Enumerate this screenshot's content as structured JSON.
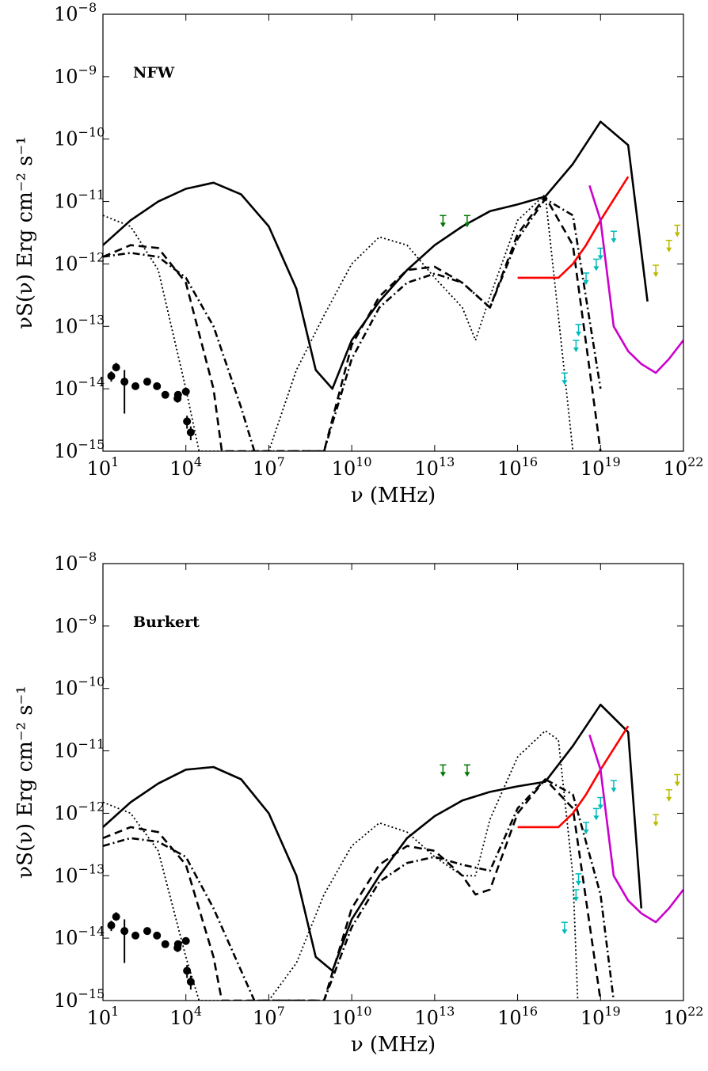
{
  "chart_data": [
    {
      "type": "line",
      "panel_label": "NFW",
      "xlabel": "ν (MHz)",
      "ylabel": "νS(ν) Erg cm⁻² s⁻¹",
      "x_scale": "log",
      "y_scale": "log",
      "xlim": [
        10,
        1e+22
      ],
      "ylim": [
        1e-15,
        1e-08
      ],
      "x_ticks": [
        {
          "base": "10",
          "exp": "1"
        },
        {
          "base": "10",
          "exp": "4"
        },
        {
          "base": "10",
          "exp": "7"
        },
        {
          "base": "10",
          "exp": "10"
        },
        {
          "base": "10",
          "exp": "13"
        },
        {
          "base": "10",
          "exp": "16"
        },
        {
          "base": "10",
          "exp": "19"
        },
        {
          "base": "10",
          "exp": "22"
        }
      ],
      "y_ticks": [
        {
          "base": "10",
          "exp": "−15"
        },
        {
          "base": "10",
          "exp": "−14"
        },
        {
          "base": "10",
          "exp": "−13"
        },
        {
          "base": "10",
          "exp": "−12"
        },
        {
          "base": "10",
          "exp": "−11"
        },
        {
          "base": "10",
          "exp": "−10"
        },
        {
          "base": "10",
          "exp": "−9"
        },
        {
          "base": "10",
          "exp": "−8"
        }
      ],
      "series": [
        {
          "style": "solid",
          "color": "#000000",
          "x": [
            10,
            100,
            1000,
            10000,
            100000.0,
            1000000.0,
            10000000.0,
            100000000.0,
            500000000.0,
            2000000000.0,
            10000000000.0,
            100000000000.0,
            1000000000000.0,
            10000000000000.0,
            100000000000000.0,
            1000000000000000.0,
            1e+16,
            1e+17,
            1e+18,
            1e+19,
            1e+20,
            5e+20
          ],
          "y": [
            2e-12,
            5e-12,
            1e-11,
            1.6e-11,
            2e-11,
            1.3e-11,
            4e-12,
            4e-13,
            2e-14,
            1e-14,
            6e-14,
            2.5e-13,
            8e-13,
            2e-12,
            4e-12,
            7e-12,
            9e-12,
            1.2e-11,
            4e-11,
            1.9e-10,
            8e-11,
            2.5e-13
          ]
        },
        {
          "style": "dashed",
          "color": "#000000",
          "x": [
            10,
            100,
            1000,
            10000.0,
            100000.0,
            200000.0,
            1000000000.0,
            10000000000.0,
            100000000000.0,
            1000000000000.0,
            10000000000000.0,
            100000000000000.0,
            1000000000000000.0,
            1e+16,
            1e+17,
            1e+18,
            1e+19
          ],
          "y": [
            1.3e-12,
            2e-12,
            1.8e-12,
            5e-13,
            1e-14,
            1e-15,
            1e-15,
            5e-14,
            3e-13,
            8e-13,
            9e-13,
            5e-13,
            2e-13,
            3e-12,
            1.2e-11,
            2e-12,
            1e-15
          ]
        },
        {
          "style": "dashdot",
          "color": "#000000",
          "x": [
            10,
            100,
            1000,
            10000.0,
            100000.0,
            1000000.0,
            3000000.0,
            1000000000.0,
            10000000000.0,
            100000000000.0,
            1000000000000.0,
            10000000000000.0,
            100000000000000.0,
            1000000000000000.0,
            1e+16,
            1e+17,
            1e+18,
            1e+19
          ],
          "y": [
            1.3e-12,
            1.5e-12,
            1.3e-12,
            6e-13,
            1e-13,
            5e-15,
            1e-15,
            1e-15,
            3e-14,
            2e-13,
            5e-13,
            7e-13,
            5e-13,
            2e-13,
            2.5e-12,
            1.1e-11,
            6e-12,
            1e-14
          ]
        },
        {
          "style": "dotted",
          "color": "#000000",
          "x": [
            10,
            100,
            1000,
            10000.0,
            30000.0,
            1000000.0,
            10000000.0,
            100000000.0,
            1000000000.0,
            10000000000.0,
            100000000000.0,
            1000000000000.0,
            10000000000000.0,
            100000000000000.0,
            300000000000000.0,
            1000000000000000.0,
            1e+16,
            1e+17,
            1e+18
          ],
          "y": [
            6e-12,
            4e-12,
            8e-13,
            1e-14,
            1e-15,
            1e-15,
            1e-15,
            2e-14,
            1.5e-13,
            1e-12,
            2.7e-12,
            2e-12,
            6e-13,
            2e-13,
            6e-14,
            3e-13,
            5e-12,
            1.3e-11,
            1e-15
          ]
        },
        {
          "style": "solid",
          "color": "#ff0000",
          "x": [
            1e+16,
            1e+17,
            3e+17,
            1e+18,
            3e+18,
            1e+19,
            1e+20
          ],
          "y": [
            6e-13,
            6e-13,
            6e-13,
            1e-12,
            2e-12,
            5e-12,
            2.5e-11
          ]
        },
        {
          "style": "solid",
          "color": "#cc00cc",
          "x": [
            4e+18,
            1e+19,
            3e+19,
            1e+20,
            3e+20,
            1e+21,
            3e+21,
            1e+22
          ],
          "y": [
            1.8e-11,
            5e-12,
            1e-13,
            4e-14,
            2.5e-14,
            1.8e-14,
            3e-14,
            6e-14
          ]
        }
      ],
      "data_points": {
        "color": "#000000",
        "x": [
          20,
          30,
          60,
          150,
          400,
          900,
          1800,
          5000,
          5200,
          10000,
          11000,
          15000
        ],
        "y": [
          1.6e-14,
          2.2e-14,
          1.3e-14,
          1.1e-14,
          1.3e-14,
          1.1e-14,
          8e-15,
          7e-15,
          8e-15,
          9e-15,
          3e-15,
          2e-15
        ],
        "yerr_low": [
          1.3e-14,
          1.9e-14,
          4e-15,
          1e-14,
          1.2e-14,
          1e-14,
          7e-15,
          6e-15,
          7e-15,
          8e-15,
          2.3e-15,
          1.5e-15
        ],
        "yerr_high": [
          1.9e-14,
          2.6e-14,
          2e-14,
          1.2e-14,
          1.4e-14,
          1.2e-14,
          9e-15,
          8e-15,
          9e-15,
          1e-14,
          3.7e-15,
          2.5e-15
        ]
      },
      "upper_limits": [
        {
          "color": "#007700",
          "x": [
            20000000000000.0,
            150000000000000.0
          ],
          "y": [
            5e-12,
            5e-12
          ]
        },
        {
          "color": "#00bbbb",
          "x": [
            5e+17,
            1.3e+18,
            1.6e+18,
            3e+18,
            7e+18,
            1e+19,
            3e+19
          ],
          "y": [
            1.5e-14,
            5e-14,
            9e-14,
            6e-13,
            1e-12,
            1.5e-12,
            2.8e-12
          ]
        },
        {
          "color": "#bbbb00",
          "x": [
            1e+21,
            3e+21,
            6e+21
          ],
          "y": [
            8e-13,
            2e-12,
            3.5e-12
          ]
        }
      ]
    },
    {
      "type": "line",
      "panel_label": "Burkert",
      "xlabel": "ν (MHz)",
      "ylabel": "νS(ν) Erg cm⁻² s⁻¹",
      "x_scale": "log",
      "y_scale": "log",
      "xlim": [
        10,
        1e+22
      ],
      "ylim": [
        1e-15,
        1e-08
      ],
      "x_ticks": [
        {
          "base": "10",
          "exp": "1"
        },
        {
          "base": "10",
          "exp": "4"
        },
        {
          "base": "10",
          "exp": "7"
        },
        {
          "base": "10",
          "exp": "10"
        },
        {
          "base": "10",
          "exp": "13"
        },
        {
          "base": "10",
          "exp": "16"
        },
        {
          "base": "10",
          "exp": "19"
        },
        {
          "base": "10",
          "exp": "22"
        }
      ],
      "y_ticks": [
        {
          "base": "10",
          "exp": "−15"
        },
        {
          "base": "10",
          "exp": "−14"
        },
        {
          "base": "10",
          "exp": "−13"
        },
        {
          "base": "10",
          "exp": "−12"
        },
        {
          "base": "10",
          "exp": "−11"
        },
        {
          "base": "10",
          "exp": "−10"
        },
        {
          "base": "10",
          "exp": "−9"
        },
        {
          "base": "10",
          "exp": "−8"
        }
      ],
      "series": [
        {
          "style": "solid",
          "color": "#000000",
          "x": [
            10,
            100,
            1000,
            10000,
            100000.0,
            1000000.0,
            10000000.0,
            100000000.0,
            500000000.0,
            2000000000.0,
            10000000000.0,
            100000000000.0,
            1000000000000.0,
            10000000000000.0,
            100000000000000.0,
            1000000000000000.0,
            1e+16,
            1e+17,
            1e+18,
            1e+19,
            1e+20,
            3e+20
          ],
          "y": [
            6e-13,
            1.5e-12,
            3e-12,
            5e-12,
            5.5e-12,
            3.5e-12,
            1e-12,
            1e-13,
            5e-15,
            3e-15,
            2e-14,
            1e-13,
            4e-13,
            9e-13,
            1.6e-12,
            2.2e-12,
            2.7e-12,
            3.2e-12,
            1.2e-11,
            5.5e-11,
            2e-11,
            3e-14
          ]
        },
        {
          "style": "dashed",
          "color": "#000000",
          "x": [
            10,
            100,
            1000,
            10000.0,
            100000.0,
            200000.0,
            1000000000.0,
            10000000000.0,
            100000000000.0,
            1000000000000.0,
            10000000000000.0,
            100000000000000.0,
            300000000000000.0,
            1000000000000000.0,
            1e+16,
            1e+17,
            1e+18,
            1e+19
          ],
          "y": [
            4e-13,
            6e-13,
            5e-13,
            1.5e-13,
            5e-15,
            1e-15,
            1e-15,
            3e-14,
            1.5e-13,
            3e-13,
            2.5e-13,
            1e-13,
            5e-14,
            6e-14,
            1e-12,
            3.5e-12,
            1.2e-12,
            1e-15
          ]
        },
        {
          "style": "dashdot",
          "color": "#000000",
          "x": [
            10,
            100,
            1000,
            10000.0,
            100000.0,
            1000000.0,
            3000000.0,
            1000000000.0,
            10000000000.0,
            100000000000.0,
            1000000000000.0,
            10000000000000.0,
            100000000000000.0,
            1000000000000000.0,
            1e+16,
            1e+17,
            1e+18,
            1e+19,
            3e+19
          ],
          "y": [
            3e-13,
            4e-13,
            3.5e-13,
            2e-13,
            3e-14,
            3e-15,
            1e-15,
            1e-15,
            1.5e-14,
            8e-14,
            1.6e-13,
            2e-13,
            1.5e-13,
            1.2e-13,
            1.2e-12,
            3.5e-12,
            2e-12,
            5e-14,
            1e-15
          ]
        },
        {
          "style": "dotted",
          "color": "#000000",
          "x": [
            10,
            100,
            1000,
            10000.0,
            30000.0,
            1000000.0,
            10000000.0,
            100000000.0,
            1000000000.0,
            10000000000.0,
            100000000000.0,
            1000000000000.0,
            10000000000000.0,
            100000000000000.0,
            300000000000000.0,
            1000000000000000.0,
            1e+16,
            1e+17,
            3e+17,
            1e+18,
            1.5e+18
          ],
          "y": [
            1.5e-12,
            1e-12,
            2.5e-13,
            5e-15,
            1e-15,
            1e-15,
            1e-15,
            4e-15,
            5e-14,
            3e-13,
            7e-13,
            5e-13,
            2e-13,
            1e-13,
            1e-13,
            8e-13,
            8e-12,
            2.1e-11,
            1.5e-11,
            1e-13,
            1e-15
          ]
        },
        {
          "style": "solid",
          "color": "#ff0000",
          "x": [
            1e+16,
            1e+17,
            3e+17,
            1e+18,
            3e+18,
            1e+19,
            1e+20
          ],
          "y": [
            6e-13,
            6e-13,
            6e-13,
            1e-12,
            2e-12,
            5e-12,
            2.5e-11
          ]
        },
        {
          "style": "solid",
          "color": "#cc00cc",
          "x": [
            4e+18,
            1e+19,
            3e+19,
            1e+20,
            3e+20,
            1e+21,
            3e+21,
            1e+22
          ],
          "y": [
            1.8e-11,
            5e-12,
            1e-13,
            4e-14,
            2.5e-14,
            1.8e-14,
            3e-14,
            6e-14
          ]
        }
      ],
      "data_points": {
        "color": "#000000",
        "x": [
          20,
          30,
          60,
          150,
          400,
          900,
          1800,
          5000,
          5200,
          10000,
          11000,
          15000
        ],
        "y": [
          1.6e-14,
          2.2e-14,
          1.3e-14,
          1.1e-14,
          1.3e-14,
          1.1e-14,
          8e-15,
          7e-15,
          8e-15,
          9e-15,
          3e-15,
          2e-15
        ],
        "yerr_low": [
          1.3e-14,
          1.9e-14,
          4e-15,
          1e-14,
          1.2e-14,
          1e-14,
          7e-15,
          6e-15,
          7e-15,
          8e-15,
          2.3e-15,
          1.5e-15
        ],
        "yerr_high": [
          1.9e-14,
          2.6e-14,
          2e-14,
          1.2e-14,
          1.4e-14,
          1.2e-14,
          9e-15,
          8e-15,
          9e-15,
          1e-14,
          3.7e-15,
          2.5e-15
        ]
      },
      "upper_limits": [
        {
          "color": "#007700",
          "x": [
            20000000000000.0,
            150000000000000.0
          ],
          "y": [
            5e-12,
            5e-12
          ]
        },
        {
          "color": "#00bbbb",
          "x": [
            5e+17,
            1.3e+18,
            1.6e+18,
            3e+18,
            7e+18,
            1e+19,
            3e+19
          ],
          "y": [
            1.5e-14,
            5e-14,
            9e-14,
            6e-13,
            1e-12,
            1.5e-12,
            2.8e-12
          ]
        },
        {
          "color": "#bbbb00",
          "x": [
            1e+21,
            3e+21,
            6e+21
          ],
          "y": [
            8e-13,
            2e-12,
            3.5e-12
          ]
        }
      ]
    }
  ]
}
